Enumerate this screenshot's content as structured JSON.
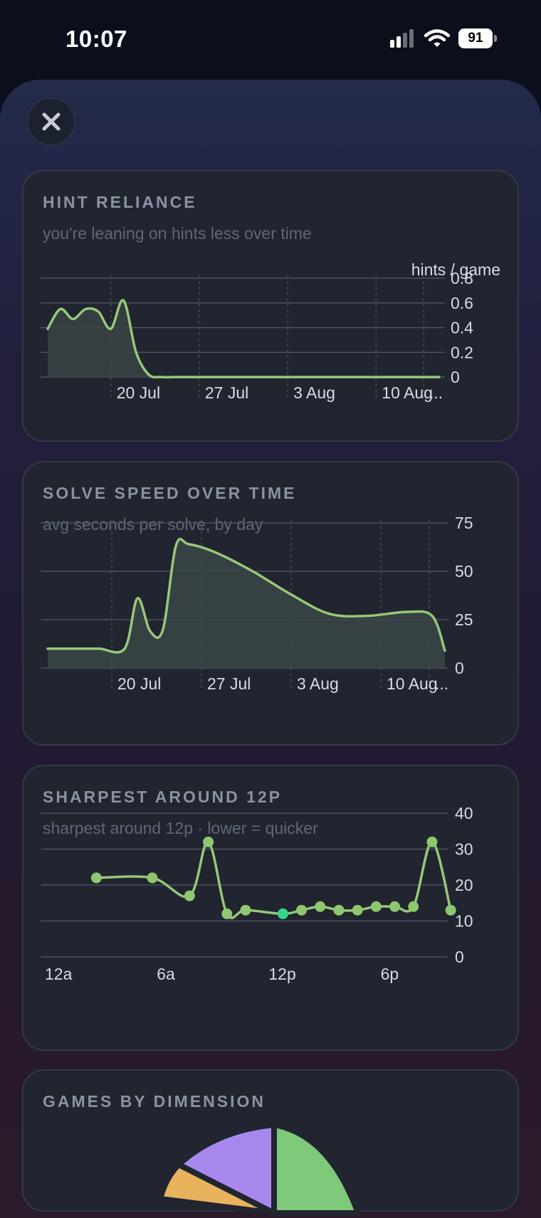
{
  "status_bar": {
    "time": "10:07",
    "battery": "91"
  },
  "colors": {
    "accent": "#8fc76f",
    "point_highlight": "#37d68a",
    "pie_green": "#7fc97a",
    "pie_purple": "#a988ee",
    "pie_orange": "#e9b25d"
  },
  "icons": {
    "close": "close-icon",
    "signal": "signal-icon",
    "wifi": "wifi-icon",
    "battery": "battery-icon"
  },
  "cards": {
    "hint": {
      "title": "HINT RELIANCE",
      "subtitle": "you're leaning on hints less over time",
      "unit": "hints / game"
    },
    "speed": {
      "title": "SOLVE SPEED OVER TIME",
      "subtitle": "avg seconds per solve, by day"
    },
    "hour": {
      "title": "SHARPEST AROUND 12P",
      "subtitle": "sharpest around 12p · lower = quicker"
    },
    "dimension": {
      "title": "GAMES BY DIMENSION"
    }
  },
  "chart_data": [
    {
      "type": "area",
      "title": "HINT RELIANCE",
      "ylabel": "hints / game",
      "ylim": [
        0,
        0.8
      ],
      "yticks": [
        "0.8",
        "0.6",
        "0.4",
        "0.2",
        "0"
      ],
      "xticks": [
        "20 Jul",
        "27 Jul",
        "3 Aug",
        "10 Aug",
        "..."
      ],
      "grid": true,
      "x": [
        "15 Jul",
        "16 Jul",
        "17 Jul",
        "18 Jul",
        "19 Jul",
        "20 Jul",
        "21 Jul",
        "22 Jul",
        "23 Jul",
        "24 Jul",
        "25 Jul",
        "26 Jul",
        "27 Jul",
        "3 Aug",
        "10 Aug",
        "15 Aug"
      ],
      "values": [
        0.39,
        0.55,
        0.47,
        0.55,
        0.53,
        0.39,
        0.62,
        0.2,
        0.02,
        0,
        0,
        0,
        0,
        0,
        0,
        0
      ]
    },
    {
      "type": "area",
      "title": "SOLVE SPEED OVER TIME",
      "ylim": [
        0,
        75
      ],
      "yticks": [
        "75",
        "50",
        "25",
        "0"
      ],
      "xticks": [
        "20 Jul",
        "27 Jul",
        "3 Aug",
        "10 Aug",
        "..."
      ],
      "grid": true,
      "x": [
        "15 Jul",
        "17 Jul",
        "19 Jul",
        "21 Jul",
        "22 Jul",
        "23 Jul",
        "24 Jul",
        "25 Jul",
        "26 Jul",
        "28 Jul",
        "31 Jul",
        "3 Aug",
        "6 Aug",
        "9 Aug",
        "12 Aug",
        "14 Aug",
        "15 Aug"
      ],
      "values": [
        10,
        10,
        10,
        10,
        36,
        19,
        20,
        63,
        64,
        60,
        50,
        38,
        28,
        27,
        29,
        27,
        9
      ]
    },
    {
      "type": "line",
      "title": "SHARPEST AROUND 12P",
      "ylim": [
        0,
        40
      ],
      "yticks": [
        "40",
        "30",
        "20",
        "10",
        "0"
      ],
      "xticks": [
        "12a",
        "6a",
        "12p",
        "6p"
      ],
      "grid": true,
      "x": [
        2,
        5,
        7,
        8,
        9,
        10,
        12,
        13,
        14,
        15,
        16,
        17,
        18,
        19,
        20,
        21
      ],
      "values": [
        22,
        22,
        17,
        32,
        12,
        13,
        12,
        13,
        14,
        13,
        13,
        14,
        14,
        14,
        32,
        13
      ],
      "highlight_x": 12
    },
    {
      "type": "pie",
      "title": "GAMES BY DIMENSION"
    }
  ]
}
